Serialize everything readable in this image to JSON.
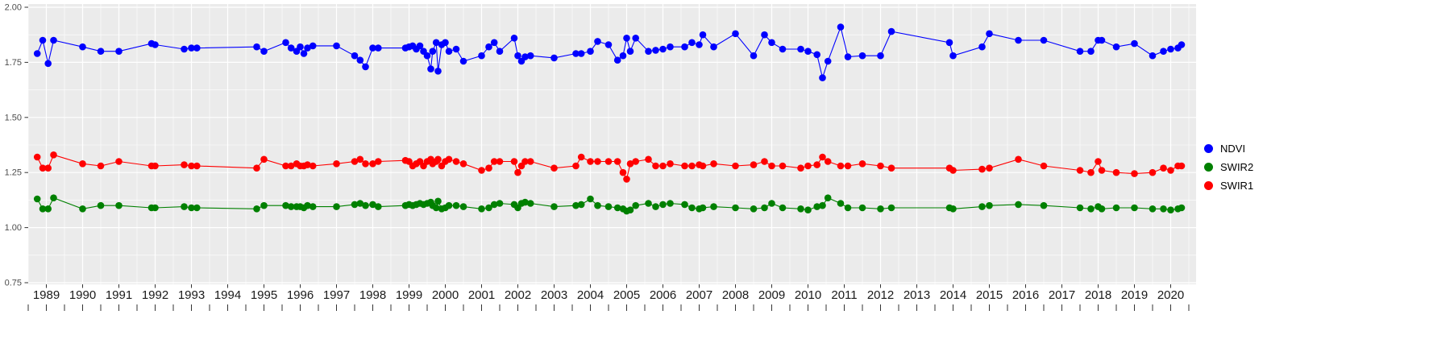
{
  "colors": {
    "panel_bg": "#EBEBEB",
    "grid": "#FFFFFF",
    "axis_tick": "#333333",
    "y_axis_text": "#4D4D4D",
    "x_axis_text": "#1A1A1A",
    "ndvi": "#0000FF",
    "swir2": "#008000",
    "swir1": "#FF0000"
  },
  "legend": {
    "position": "right",
    "items": [
      {
        "label": "NDVI",
        "color": "#0000FF"
      },
      {
        "label": "SWIR2",
        "color": "#008000"
      },
      {
        "label": "SWIR1",
        "color": "#FF0000"
      }
    ]
  },
  "chart_data": {
    "type": "line",
    "title": "",
    "xlabel": "",
    "ylabel": "",
    "grid": true,
    "legend_position": "right",
    "xlim": [
      1988.5,
      2020.7
    ],
    "ylim": [
      0.75,
      2.0
    ],
    "y_ticks": [
      0.75,
      1.0,
      1.25,
      1.5,
      1.75,
      2.0
    ],
    "y_tick_labels": [
      "0.75",
      "1.00",
      "1.25",
      "1.50",
      "1.75",
      "2.00"
    ],
    "x_ticks": [
      1989,
      1990,
      1991,
      1992,
      1993,
      1994,
      1995,
      1996,
      1997,
      1998,
      1999,
      2000,
      2001,
      2002,
      2003,
      2004,
      2005,
      2006,
      2007,
      2008,
      2009,
      2010,
      2011,
      2012,
      2013,
      2014,
      2015,
      2016,
      2017,
      2018,
      2019,
      2020
    ],
    "x_tick_labels": [
      "1989",
      "1990",
      "1991",
      "1992",
      "1993",
      "1994",
      "1995",
      "1996",
      "1997",
      "1998",
      "1999",
      "2000",
      "2001",
      "2002",
      "2003",
      "2004",
      "2005",
      "2006",
      "2007",
      "2008",
      "2009",
      "2010",
      "2011",
      "2012",
      "2013",
      "2014",
      "2015",
      "2016",
      "2017",
      "2018",
      "2019",
      "2020"
    ],
    "x": [
      1988.75,
      1988.9,
      1989.05,
      1989.2,
      1990,
      1990.5,
      1991,
      1991.9,
      1992,
      1992.8,
      1993,
      1993.15,
      1994.8,
      1995,
      1995.6,
      1995.75,
      1995.9,
      1996,
      1996.1,
      1996.2,
      1996.35,
      1997,
      1997.5,
      1997.65,
      1997.8,
      1998,
      1998.15,
      1998.9,
      1999,
      1999.1,
      1999.2,
      1999.3,
      1999.4,
      1999.5,
      1999.6,
      1999.65,
      1999.75,
      1999.8,
      1999.9,
      2000,
      2000.1,
      2000.3,
      2000.5,
      2001,
      2001.2,
      2001.35,
      2001.5,
      2001.9,
      2002,
      2002.1,
      2002.2,
      2002.35,
      2003,
      2003.6,
      2003.75,
      2004,
      2004.2,
      2004.5,
      2004.75,
      2004.9,
      2005,
      2005.1,
      2005.25,
      2005.6,
      2005.8,
      2006,
      2006.2,
      2006.6,
      2006.8,
      2007,
      2007.1,
      2007.4,
      2008,
      2008.5,
      2008.8,
      2009,
      2009.3,
      2009.8,
      2010,
      2010.25,
      2010.4,
      2010.55,
      2010.9,
      2011.1,
      2011.5,
      2012,
      2012.3,
      2013.9,
      2014,
      2014.8,
      2015,
      2015.8,
      2016.5,
      2017.5,
      2017.8,
      2018,
      2018.1,
      2018.5,
      2019,
      2019.5,
      2019.8,
      2020,
      2020.2,
      2020.3
    ],
    "series": [
      {
        "name": "NDVI",
        "color": "#0000FF",
        "values": [
          1.79,
          1.85,
          1.745,
          1.85,
          1.82,
          1.8,
          1.8,
          1.835,
          1.83,
          1.81,
          1.815,
          1.815,
          1.82,
          1.8,
          1.84,
          1.815,
          1.8,
          1.82,
          1.79,
          1.815,
          1.825,
          1.825,
          1.78,
          1.76,
          1.73,
          1.815,
          1.815,
          1.815,
          1.82,
          1.825,
          1.81,
          1.825,
          1.8,
          1.78,
          1.72,
          1.8,
          1.84,
          1.71,
          1.83,
          1.84,
          1.8,
          1.81,
          1.755,
          1.78,
          1.82,
          1.84,
          1.8,
          1.86,
          1.78,
          1.755,
          1.775,
          1.78,
          1.77,
          1.79,
          1.79,
          1.8,
          1.845,
          1.83,
          1.76,
          1.78,
          1.86,
          1.8,
          1.86,
          1.8,
          1.805,
          1.81,
          1.82,
          1.82,
          1.84,
          1.83,
          1.875,
          1.82,
          1.88,
          1.78,
          1.875,
          1.84,
          1.81,
          1.81,
          1.8,
          1.785,
          1.68,
          1.755,
          1.91,
          1.775,
          1.78,
          1.78,
          1.89,
          1.84,
          1.78,
          1.82,
          1.88,
          1.85,
          1.85,
          1.8,
          1.8,
          1.85,
          1.85,
          1.82,
          1.835,
          1.78,
          1.8,
          1.81,
          1.815,
          1.83
        ]
      },
      {
        "name": "SWIR2",
        "color": "#008000",
        "values": [
          1.13,
          1.085,
          1.085,
          1.135,
          1.085,
          1.1,
          1.1,
          1.09,
          1.09,
          1.095,
          1.09,
          1.09,
          1.085,
          1.1,
          1.1,
          1.095,
          1.095,
          1.095,
          1.09,
          1.1,
          1.095,
          1.095,
          1.105,
          1.11,
          1.1,
          1.105,
          1.095,
          1.1,
          1.105,
          1.1,
          1.105,
          1.11,
          1.105,
          1.11,
          1.115,
          1.1,
          1.09,
          1.12,
          1.085,
          1.09,
          1.1,
          1.1,
          1.095,
          1.085,
          1.09,
          1.105,
          1.11,
          1.105,
          1.09,
          1.11,
          1.115,
          1.11,
          1.095,
          1.1,
          1.105,
          1.13,
          1.1,
          1.095,
          1.09,
          1.085,
          1.075,
          1.08,
          1.1,
          1.11,
          1.095,
          1.105,
          1.11,
          1.105,
          1.09,
          1.085,
          1.09,
          1.095,
          1.09,
          1.085,
          1.09,
          1.11,
          1.09,
          1.085,
          1.08,
          1.095,
          1.1,
          1.135,
          1.11,
          1.09,
          1.09,
          1.085,
          1.09,
          1.09,
          1.085,
          1.095,
          1.1,
          1.105,
          1.1,
          1.09,
          1.085,
          1.095,
          1.085,
          1.09,
          1.09,
          1.085,
          1.085,
          1.08,
          1.085,
          1.09
        ]
      },
      {
        "name": "SWIR1",
        "color": "#FF0000",
        "values": [
          1.32,
          1.27,
          1.27,
          1.33,
          1.29,
          1.28,
          1.3,
          1.28,
          1.28,
          1.285,
          1.28,
          1.28,
          1.27,
          1.31,
          1.28,
          1.28,
          1.29,
          1.28,
          1.28,
          1.285,
          1.28,
          1.29,
          1.3,
          1.31,
          1.29,
          1.29,
          1.3,
          1.305,
          1.3,
          1.28,
          1.29,
          1.3,
          1.28,
          1.3,
          1.31,
          1.29,
          1.3,
          1.31,
          1.28,
          1.3,
          1.31,
          1.3,
          1.29,
          1.26,
          1.27,
          1.3,
          1.3,
          1.3,
          1.25,
          1.28,
          1.3,
          1.3,
          1.27,
          1.28,
          1.32,
          1.3,
          1.3,
          1.3,
          1.3,
          1.25,
          1.22,
          1.29,
          1.3,
          1.31,
          1.28,
          1.28,
          1.29,
          1.28,
          1.28,
          1.285,
          1.28,
          1.29,
          1.28,
          1.285,
          1.3,
          1.28,
          1.28,
          1.27,
          1.28,
          1.285,
          1.32,
          1.3,
          1.28,
          1.28,
          1.29,
          1.28,
          1.27,
          1.27,
          1.26,
          1.265,
          1.27,
          1.31,
          1.28,
          1.26,
          1.25,
          1.3,
          1.26,
          1.25,
          1.245,
          1.25,
          1.27,
          1.26,
          1.28,
          1.28
        ]
      }
    ]
  }
}
